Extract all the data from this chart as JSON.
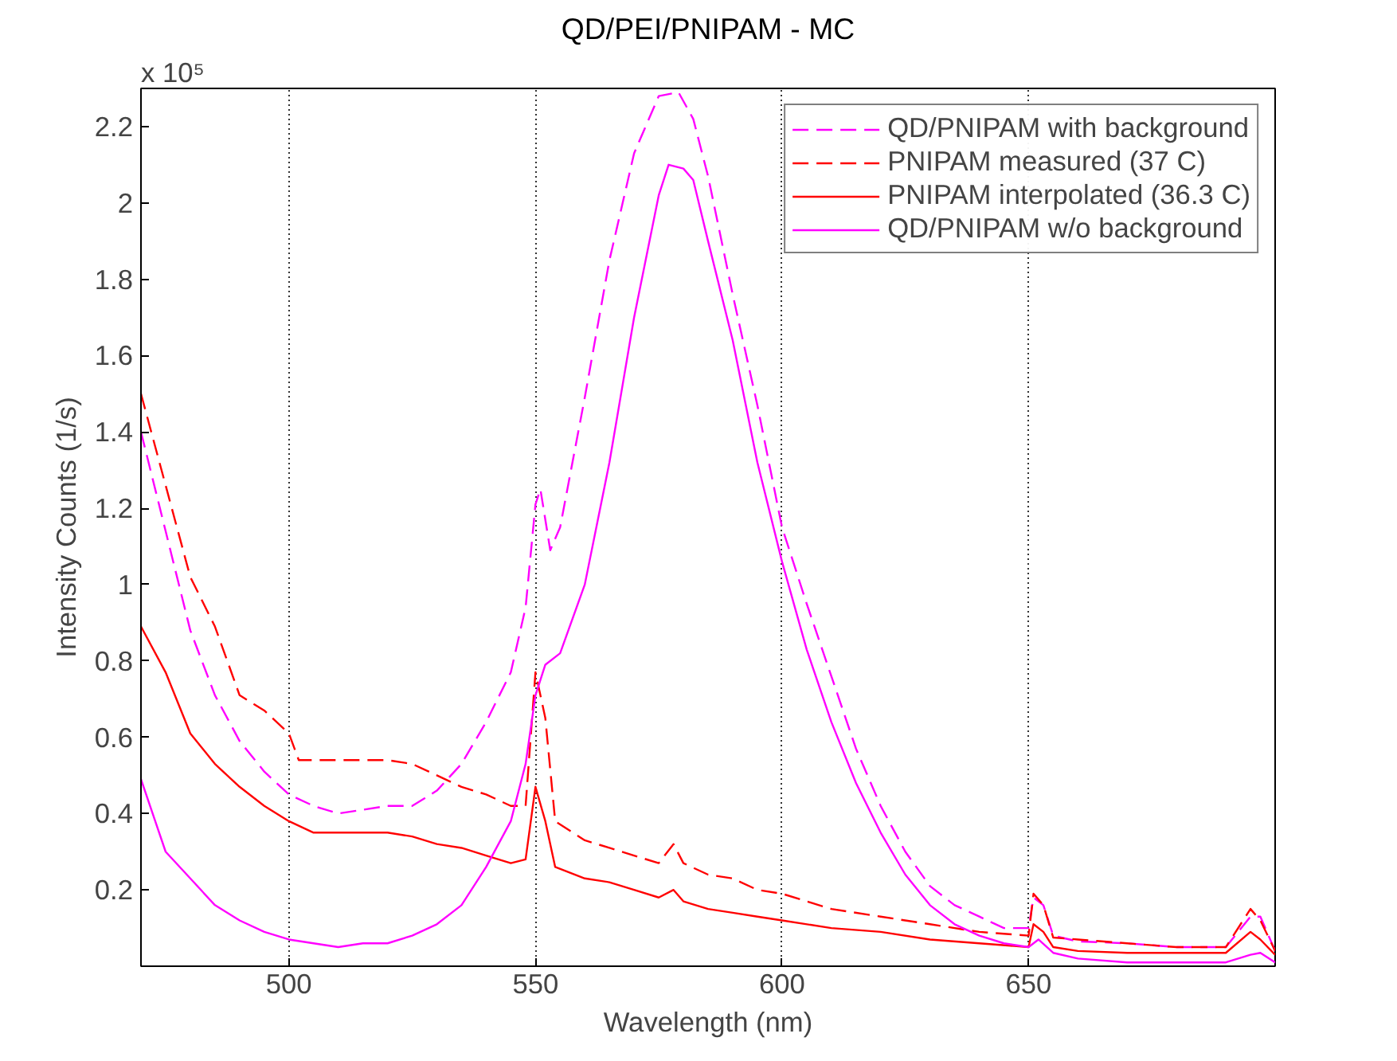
{
  "chart_data": {
    "type": "line",
    "title": "QD/PEI/PNIPAM - MC",
    "xlabel": "Wavelength (nm)",
    "ylabel": "Intensity Counts (1/s)",
    "annotations": [
      "x 10⁵"
    ],
    "xlim": [
      470,
      700
    ],
    "ylim": [
      0,
      2.3
    ],
    "xticks": [
      500,
      550,
      600,
      650
    ],
    "yticks": [
      0.2,
      0.4,
      0.6,
      0.8,
      1,
      1.2,
      1.4,
      1.6,
      1.8,
      2,
      2.2
    ],
    "grid": "x",
    "legend": "top right",
    "series": [
      {
        "name": "QD/PNIPAM with background",
        "color": "#ff00ff",
        "line_style": "dashed",
        "x": [
          470,
          475,
          480,
          485,
          490,
          495,
          500,
          505,
          510,
          515,
          520,
          525,
          530,
          535,
          540,
          545,
          548,
          550,
          551,
          553,
          555,
          560,
          565,
          570,
          575,
          579,
          582,
          585,
          590,
          595,
          600,
          605,
          610,
          615,
          620,
          625,
          630,
          635,
          640,
          645,
          650,
          651,
          653,
          655,
          660,
          670,
          680,
          690,
          695,
          697,
          700
        ],
        "values": [
          1.4,
          1.14,
          0.88,
          0.71,
          0.59,
          0.51,
          0.45,
          0.42,
          0.4,
          0.41,
          0.42,
          0.42,
          0.46,
          0.53,
          0.64,
          0.77,
          0.94,
          1.21,
          1.25,
          1.09,
          1.15,
          1.49,
          1.85,
          2.13,
          2.28,
          2.29,
          2.22,
          2.07,
          1.76,
          1.47,
          1.15,
          0.95,
          0.76,
          0.57,
          0.42,
          0.3,
          0.21,
          0.16,
          0.13,
          0.1,
          0.1,
          0.18,
          0.16,
          0.08,
          0.065,
          0.06,
          0.05,
          0.05,
          0.13,
          0.13,
          0.04
        ]
      },
      {
        "name": "PNIPAM measured (37 C)",
        "color": "#ff0000",
        "line_style": "dashed",
        "x": [
          470,
          475,
          480,
          485,
          490,
          495,
          500,
          502,
          505,
          510,
          515,
          520,
          525,
          530,
          535,
          540,
          545,
          548,
          550,
          552,
          554,
          560,
          565,
          570,
          575,
          578,
          580,
          585,
          590,
          595,
          600,
          610,
          620,
          630,
          640,
          650,
          651,
          653,
          655,
          660,
          670,
          680,
          690,
          695,
          697,
          700
        ],
        "values": [
          1.5,
          1.26,
          1.02,
          0.89,
          0.71,
          0.67,
          0.61,
          0.54,
          0.54,
          0.54,
          0.54,
          0.54,
          0.53,
          0.5,
          0.47,
          0.45,
          0.42,
          0.42,
          0.77,
          0.65,
          0.38,
          0.33,
          0.31,
          0.29,
          0.27,
          0.32,
          0.27,
          0.24,
          0.23,
          0.2,
          0.19,
          0.15,
          0.13,
          0.11,
          0.09,
          0.08,
          0.19,
          0.16,
          0.075,
          0.07,
          0.06,
          0.05,
          0.05,
          0.15,
          0.12,
          0.04
        ]
      },
      {
        "name": "PNIPAM interpolated (36.3 C)",
        "color": "#ff0000",
        "line_style": "solid",
        "x": [
          470,
          475,
          480,
          485,
          490,
          495,
          500,
          505,
          510,
          515,
          520,
          525,
          530,
          535,
          540,
          545,
          548,
          550,
          552,
          554,
          560,
          565,
          570,
          575,
          578,
          580,
          585,
          590,
          595,
          600,
          610,
          620,
          630,
          640,
          650,
          651,
          653,
          655,
          660,
          670,
          680,
          690,
          695,
          697,
          700
        ],
        "values": [
          0.89,
          0.77,
          0.61,
          0.53,
          0.47,
          0.42,
          0.38,
          0.35,
          0.35,
          0.35,
          0.35,
          0.34,
          0.32,
          0.31,
          0.29,
          0.27,
          0.28,
          0.47,
          0.38,
          0.26,
          0.23,
          0.22,
          0.2,
          0.18,
          0.2,
          0.17,
          0.15,
          0.14,
          0.13,
          0.12,
          0.1,
          0.09,
          0.07,
          0.06,
          0.05,
          0.11,
          0.09,
          0.05,
          0.04,
          0.035,
          0.035,
          0.035,
          0.09,
          0.07,
          0.03
        ]
      },
      {
        "name": "QD/PNIPAM w/o background",
        "color": "#ff00ff",
        "line_style": "solid",
        "x": [
          470,
          475,
          480,
          485,
          490,
          495,
          500,
          505,
          510,
          515,
          520,
          525,
          530,
          535,
          540,
          545,
          548,
          550,
          552,
          555,
          560,
          565,
          570,
          575,
          577,
          580,
          582,
          585,
          590,
          595,
          600,
          605,
          610,
          615,
          620,
          625,
          630,
          635,
          640,
          645,
          650,
          652,
          655,
          660,
          670,
          680,
          690,
          695,
          697,
          700
        ],
        "values": [
          0.49,
          0.3,
          0.23,
          0.16,
          0.12,
          0.09,
          0.07,
          0.06,
          0.05,
          0.06,
          0.06,
          0.08,
          0.11,
          0.16,
          0.26,
          0.38,
          0.53,
          0.71,
          0.79,
          0.82,
          1.0,
          1.32,
          1.7,
          2.02,
          2.1,
          2.09,
          2.06,
          1.9,
          1.64,
          1.32,
          1.06,
          0.83,
          0.64,
          0.48,
          0.35,
          0.24,
          0.16,
          0.11,
          0.08,
          0.06,
          0.05,
          0.07,
          0.035,
          0.02,
          0.01,
          0.01,
          0.01,
          0.03,
          0.035,
          0.01
        ]
      }
    ]
  }
}
